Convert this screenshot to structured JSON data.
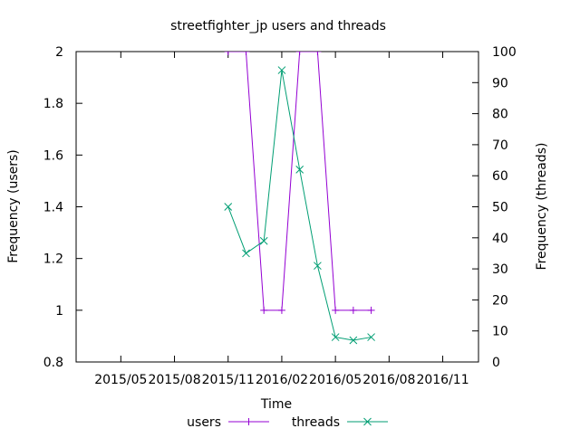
{
  "chart_data": {
    "type": "line",
    "title": "streetfighter_jp users and threads",
    "xlabel": "Time",
    "ylabel_left": "Frequency (users)",
    "ylabel_right": "Frequency (threads)",
    "x_ticks": [
      "2015/05",
      "2015/08",
      "2015/11",
      "2016/02",
      "2016/05",
      "2016/08",
      "2016/11"
    ],
    "y_left_ticks": [
      "0.8",
      "1",
      "1.2",
      "1.4",
      "1.6",
      "1.8",
      "2"
    ],
    "y_right_ticks": [
      "0",
      "10",
      "20",
      "30",
      "40",
      "50",
      "60",
      "70",
      "80",
      "90",
      "100"
    ],
    "ylim_left": [
      0.8,
      2
    ],
    "ylim_right": [
      0,
      100
    ],
    "grid": false,
    "legend_position": "bottom-center",
    "categories": [
      "2015/11",
      "2015/12",
      "2016/01",
      "2016/02",
      "2016/03",
      "2016/04",
      "2016/05",
      "2016/06",
      "2016/07"
    ],
    "series": [
      {
        "name": "users",
        "axis": "left",
        "color": "#9400d3",
        "marker": "+",
        "values": [
          2,
          2,
          1,
          1,
          2,
          2,
          1,
          1,
          1
        ]
      },
      {
        "name": "threads",
        "axis": "right",
        "color": "#009e73",
        "marker": "x",
        "values": [
          50,
          35,
          39,
          94,
          62,
          31,
          8,
          7,
          8
        ]
      }
    ]
  }
}
